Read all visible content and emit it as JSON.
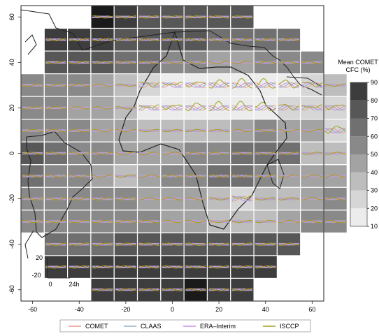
{
  "chart_data": {
    "type": "heatmap",
    "title": "",
    "xlabel": "",
    "ylabel": "",
    "xlim": [
      -65,
      65
    ],
    "ylim": [
      -65,
      65
    ],
    "x_ticks": [
      "-60",
      "-40",
      "-20",
      "0",
      "20",
      "40",
      "60"
    ],
    "y_ticks": [
      "60",
      "40",
      "20",
      "0",
      "-20",
      "-40",
      "-60"
    ],
    "grid": "10x10 degree boxes, each with an inset diurnal cycle",
    "colorbar": {
      "label_line1": "Mean COMET",
      "label_line2": "CFC (%)",
      "ticks": [
        "90",
        "80",
        "70",
        "60",
        "50",
        "40",
        "30",
        "20",
        "10"
      ],
      "range": [
        10,
        90
      ],
      "colors": [
        "#ececec",
        "#d6d6d6",
        "#bdbdbd",
        "#a3a3a3",
        "#898989",
        "#707070",
        "#575757",
        "#3d3d3d",
        "#1a1a1a"
      ]
    },
    "inset_scale": {
      "y_top": "20",
      "y_bottom": "-20",
      "x_left": "0",
      "x_right": "24h"
    },
    "rows": [
      {
        "lat": 60,
        "lon_start": -30,
        "cfc": [
          92,
          80,
          75,
          72,
          73,
          72,
          74
        ]
      },
      {
        "lat": 50,
        "lon_start": -50,
        "cfc": [
          82,
          82,
          80,
          79,
          78,
          74,
          70,
          66,
          64,
          65,
          66
        ]
      },
      {
        "lat": 40,
        "lon_start": -50,
        "cfc": [
          74,
          72,
          70,
          68,
          64,
          58,
          52,
          48,
          46,
          50,
          52,
          58
        ]
      },
      {
        "lat": 30,
        "lon_start": -60,
        "cfc": [
          56,
          58,
          56,
          45,
          30,
          22,
          18,
          15,
          14,
          14,
          15,
          18,
          26,
          38
        ]
      },
      {
        "lat": 20,
        "lon_start": -60,
        "cfc": [
          55,
          52,
          46,
          40,
          30,
          18,
          13,
          11,
          10,
          10,
          12,
          22,
          24,
          28
        ]
      },
      {
        "lat": 10,
        "lon_start": -60,
        "cfc": [
          58,
          56,
          50,
          45,
          40,
          38,
          36,
          36,
          38,
          42,
          50,
          48,
          40,
          26
        ]
      },
      {
        "lat": 0,
        "lon_start": -60,
        "cfc": [
          72,
          62,
          55,
          50,
          44,
          40,
          46,
          52,
          58,
          62,
          64,
          60,
          36,
          34
        ]
      },
      {
        "lat": -10,
        "lon_start": -60,
        "cfc": [
          62,
          58,
          52,
          44,
          35,
          44,
          52,
          58,
          62,
          60,
          54,
          44,
          42,
          46
        ]
      },
      {
        "lat": -20,
        "lon_start": -60,
        "cfc": [
          58,
          56,
          54,
          52,
          50,
          46,
          42,
          40,
          30,
          26,
          32,
          38,
          46,
          50
        ]
      },
      {
        "lat": -30,
        "lon_start": -60,
        "cfc": [
          56,
          54,
          52,
          52,
          52,
          50,
          46,
          40,
          34,
          32,
          38,
          44,
          50,
          52
        ]
      },
      {
        "lat": -40,
        "lon_start": -50,
        "cfc": [
          64,
          66,
          68,
          70,
          70,
          72,
          72,
          74,
          75,
          75,
          76
        ]
      },
      {
        "lat": -50,
        "lon_start": -50,
        "cfc": [
          80,
          82,
          83,
          84,
          85,
          86,
          86,
          86,
          87,
          86
        ]
      },
      {
        "lat": -60,
        "lon_start": -30,
        "cfc": [
          86,
          88,
          88,
          89,
          90,
          89,
          88
        ]
      }
    ],
    "legend_position": "bottom",
    "series": [
      {
        "name": "COMET",
        "color": "#e89a8c"
      },
      {
        "name": "CLAAS",
        "color": "#8fb0cc"
      },
      {
        "name": "ERA–Interim",
        "color": "#cc90e6"
      },
      {
        "name": "ISCCP",
        "color": "#a0a21c"
      }
    ]
  }
}
